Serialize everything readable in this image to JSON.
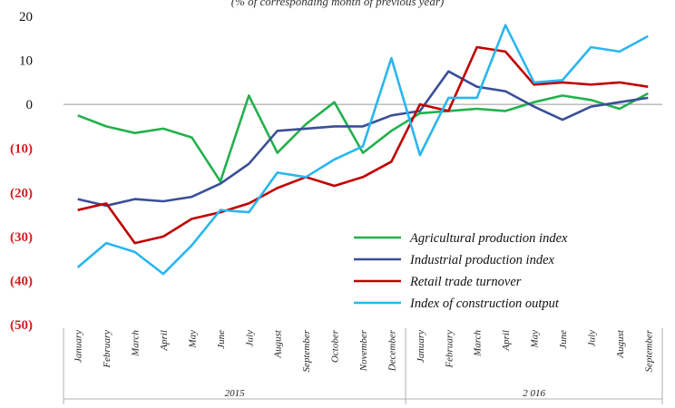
{
  "chart_data": {
    "type": "line",
    "subtitle": "(% of corresponding month of previous year)",
    "categories": [
      "January",
      "February",
      "March",
      "April",
      "May",
      "June",
      "July",
      "August",
      "September",
      "October",
      "November",
      "December",
      "January",
      "February",
      "March",
      "April",
      "May",
      "June",
      "July",
      "August",
      "September"
    ],
    "years": [
      {
        "label": "2015",
        "months": 12
      },
      {
        "label": "2 016",
        "months": 9
      }
    ],
    "ylim": [
      -50,
      20
    ],
    "yticks": [
      {
        "value": 20,
        "label": "20"
      },
      {
        "value": 10,
        "label": "10"
      },
      {
        "value": 0,
        "label": "0"
      },
      {
        "value": -10,
        "label": "(10)"
      },
      {
        "value": -20,
        "label": "(20)"
      },
      {
        "value": -30,
        "label": "(30)"
      },
      {
        "value": -40,
        "label": "(40)"
      },
      {
        "value": -50,
        "label": "(50)"
      }
    ],
    "grid": false,
    "legend_position": "bottom-right",
    "series": [
      {
        "name": "Agricultural production index",
        "color": "#22b14c",
        "values": [
          -2.5,
          -5,
          -6.5,
          -5.5,
          -7.5,
          -17.5,
          2,
          -11,
          -4.5,
          0.5,
          -11,
          -6,
          -2,
          -1.5,
          -1,
          -1.5,
          0.5,
          2,
          1,
          -1,
          2.5
        ]
      },
      {
        "name": "Industrial production index",
        "color": "#3a4f97",
        "values": [
          -21.5,
          -23,
          -21.5,
          -22,
          -21,
          -18,
          -13.5,
          -6,
          -5.5,
          -5,
          -5,
          -2.5,
          -1.5,
          7.5,
          4,
          3,
          -0.5,
          -3.5,
          -0.5,
          0.5,
          1.5
        ]
      },
      {
        "name": "Retail trade turnover",
        "color": "#c00000",
        "values": [
          -24,
          -22.5,
          -31.5,
          -30,
          -26,
          -24.5,
          -22.5,
          -19,
          -16.5,
          -18.5,
          -16.5,
          -13,
          0,
          -1.5,
          13,
          12,
          4.5,
          5,
          4.5,
          5,
          4
        ]
      },
      {
        "name": "Index of construction output",
        "color": "#29b6f0",
        "values": [
          -37,
          -31.5,
          -33.5,
          -38.5,
          -32,
          -24,
          -24.5,
          -15.5,
          -16.5,
          -12.5,
          -9.5,
          10.5,
          -11.5,
          1.5,
          1.5,
          18,
          5,
          5.5,
          13,
          12,
          15.5
        ]
      }
    ]
  }
}
